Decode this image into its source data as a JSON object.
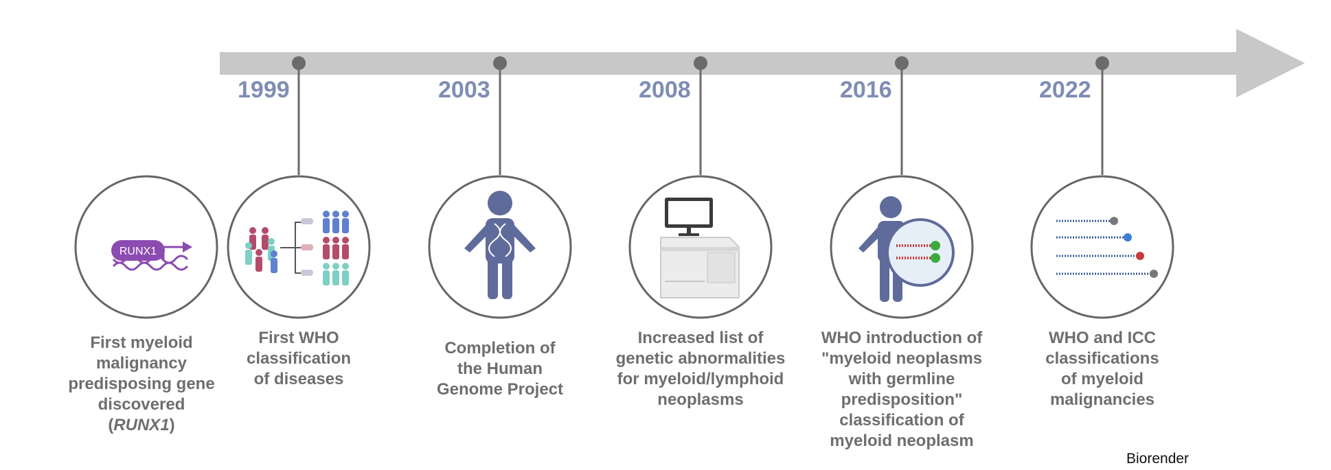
{
  "timeline": {
    "events": [
      {
        "year": "1999",
        "label_lines": [
          "First WHO",
          "classification",
          "of diseases"
        ],
        "icon": "patient-stratification-icon"
      },
      {
        "year": "2003",
        "label_lines": [
          "Completion of",
          "the Human",
          "Genome Project"
        ],
        "icon": "human-dna-icon"
      },
      {
        "year": "2008",
        "label_lines": [
          "Increased list of",
          "genetic abnormalities",
          "for myeloid/lymphoid",
          "neoplasms"
        ],
        "icon": "sequencer-icon"
      },
      {
        "year": "2016",
        "label_lines": [
          "WHO introduction of",
          "\"myeloid neoplasms",
          "with germline",
          "predisposition\"",
          "classification of",
          "myeloid neoplasm"
        ],
        "icon": "germline-person-icon"
      },
      {
        "year": "2022",
        "label_lines": [
          "WHO and ICC",
          "classifications",
          "of myeloid",
          "malignancies"
        ],
        "icon": "dna-strands-icon"
      }
    ],
    "first_gene": {
      "label_lines": [
        "First myeloid",
        "malignancy",
        "predisposing gene",
        "discovered"
      ],
      "label_gene_open": "(",
      "label_gene": "RUNX1",
      "label_gene_close": ")",
      "icon_text": "RUNX1",
      "icon": "gene-promoter-icon"
    }
  },
  "colors": {
    "arrow": "#c8c8c8",
    "year": "#7f8db5",
    "label": "#6e6e6e",
    "circle_stroke": "#666666",
    "figure": "#5f6b9a",
    "runx": "#8b4bb0"
  },
  "credit": "Biorender"
}
